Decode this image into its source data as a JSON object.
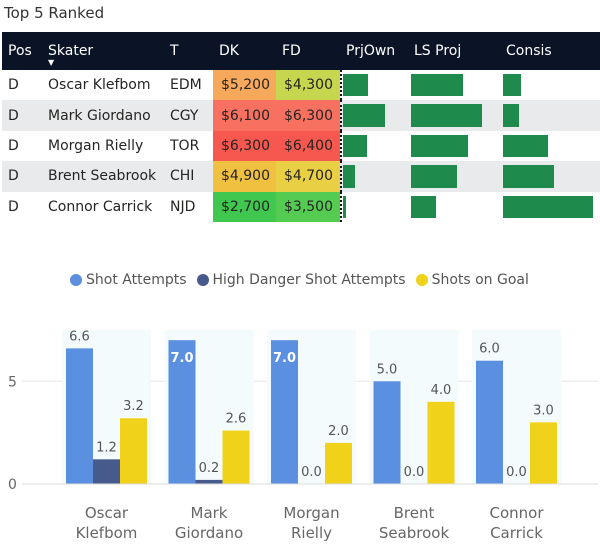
{
  "title": "Top 5 Ranked",
  "table": {
    "columns": [
      "Pos",
      "Skater",
      "T",
      "DK",
      "FD",
      "PrjOwn",
      "LS Proj",
      "Consis"
    ],
    "rows": [
      {
        "pos": "D",
        "skater": "Oscar Klefbom",
        "team": "EDM",
        "dk": "$5,200",
        "fd": "$4,300",
        "dk_color": "#f6a95b",
        "fd_color": "#c7d64f",
        "prjown": 0.4,
        "lsproj": 0.6,
        "consis": 0.2
      },
      {
        "pos": "D",
        "skater": "Mark Giordano",
        "team": "CGY",
        "dk": "$6,100",
        "fd": "$6,300",
        "dk_color": "#f77060",
        "fd_color": "#f77060",
        "prjown": 0.68,
        "lsproj": 0.82,
        "consis": 0.18
      },
      {
        "pos": "D",
        "skater": "Morgan Rielly",
        "team": "TOR",
        "dk": "$6,300",
        "fd": "$6,400",
        "dk_color": "#f6584f",
        "fd_color": "#f6584f",
        "prjown": 0.38,
        "lsproj": 0.66,
        "consis": 0.5
      },
      {
        "pos": "D",
        "skater": "Brent Seabrook",
        "team": "CHI",
        "dk": "$4,900",
        "fd": "$4,700",
        "dk_color": "#f0c040",
        "fd_color": "#e8cf44",
        "prjown": 0.2,
        "lsproj": 0.53,
        "consis": 0.57
      },
      {
        "pos": "D",
        "skater": "Connor Carrick",
        "team": "NJD",
        "dk": "$2,700",
        "fd": "$3,500",
        "dk_color": "#3fc74f",
        "fd_color": "#54cc52",
        "prjown": 0.04,
        "lsproj": 0.29,
        "consis": 1.0
      }
    ]
  },
  "chart_data": {
    "type": "bar",
    "categories": [
      [
        "Oscar",
        "Klefbom"
      ],
      [
        "Mark",
        "Giordano"
      ],
      [
        "Morgan",
        "Rielly"
      ],
      [
        "Brent",
        "Seabrook"
      ],
      [
        "Connor",
        "Carrick"
      ]
    ],
    "series": [
      {
        "name": "Shot Attempts",
        "color": "#5b8fe0",
        "values": [
          6.6,
          7.0,
          7.0,
          5.0,
          6.0
        ],
        "labels": [
          "6.6",
          "7.0",
          "7.0",
          "5.0",
          "6.0"
        ]
      },
      {
        "name": "High Danger Shot Attempts",
        "color": "#475a8c",
        "values": [
          1.2,
          0.2,
          0.0,
          0.0,
          0.0
        ],
        "labels": [
          "1.2",
          "0.2",
          "0.0",
          "0.0",
          "0.0"
        ]
      },
      {
        "name": "Shots on Goal",
        "color": "#f0d21b",
        "values": [
          3.2,
          2.6,
          2.0,
          4.0,
          3.0
        ],
        "labels": [
          "3.2",
          "2.6",
          "2.0",
          "4.0",
          "3.0"
        ]
      }
    ],
    "yticks": [
      "0",
      "5"
    ],
    "ylim": [
      0,
      7.3
    ],
    "legend_position": "top"
  }
}
